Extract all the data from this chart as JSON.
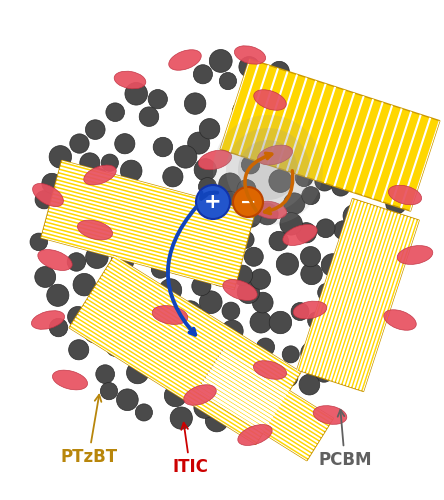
{
  "bg_color": "#ffffff",
  "pcbm_color": "#4a4a4a",
  "pcbm_edge": "#2a2a2a",
  "itic_color": "#e85060",
  "itic_edge": "#c03040",
  "ptzbt_fill": "#FFD700",
  "ptzbt_line": "#cc9900",
  "label_ptzbt": "PTzBT",
  "label_ptzbt_color": "#B8860B",
  "label_itic": "ITIC",
  "label_itic_color": "#cc0000",
  "label_pcbm": "PCBM",
  "label_pcbm_color": "#606060",
  "plus_color": "#2255cc",
  "minus_color": "#dd6600",
  "arrow_blue": "#1144bb",
  "arrow_orange": "#cc6600",
  "exciton_color": "#999999"
}
